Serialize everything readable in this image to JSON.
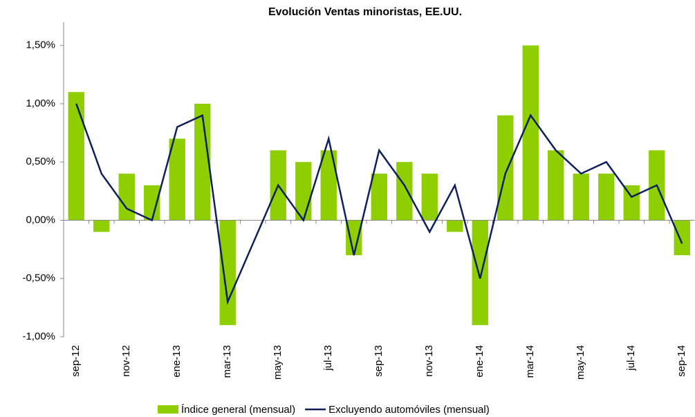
{
  "chart_data": {
    "type": "bar_line",
    "title": "Evolución Ventas minoristas, EE.UU.",
    "categories": [
      "sep-12",
      null,
      "nov-12",
      null,
      "ene-13",
      null,
      "mar-13",
      null,
      "may-13",
      null,
      "jul-13",
      null,
      "sep-13",
      null,
      "nov-13",
      null,
      "ene-14",
      null,
      "mar-14",
      null,
      "may-14",
      null,
      "jul-14",
      null,
      "sep-14"
    ],
    "series": [
      {
        "name": "Índice general (mensual)",
        "type": "bar",
        "color": "#8fce00",
        "values": [
          1.1,
          -0.1,
          0.4,
          0.3,
          0.7,
          1.0,
          -0.9,
          0,
          0.6,
          0.5,
          0.6,
          -0.3,
          0.4,
          0.5,
          0.4,
          -0.1,
          -0.9,
          0.9,
          1.5,
          0.6,
          0.4,
          0.4,
          0.3,
          0.6,
          -0.3
        ]
      },
      {
        "name": "Excluyendo automóviles (mensual)",
        "type": "line",
        "color": "#0d1f5c",
        "values": [
          1.0,
          0.4,
          0.1,
          0.0,
          0.8,
          0.9,
          -0.7,
          -0.2,
          0.3,
          0.0,
          0.7,
          -0.3,
          0.6,
          0.3,
          -0.1,
          0.3,
          -0.5,
          0.4,
          0.9,
          0.6,
          0.4,
          0.5,
          0.2,
          0.3,
          -0.2
        ]
      }
    ],
    "ylim": [
      -1,
      1.7
    ],
    "yticks": [
      {
        "value": -1,
        "label": "-1,00%"
      },
      {
        "value": -0.5,
        "label": "-0,50%"
      },
      {
        "value": 0,
        "label": "0,00%"
      },
      {
        "value": 0.5,
        "label": "0,50%"
      },
      {
        "value": 1,
        "label": "1,00%"
      },
      {
        "value": 1.5,
        "label": "1,50%"
      }
    ],
    "grid": false
  }
}
